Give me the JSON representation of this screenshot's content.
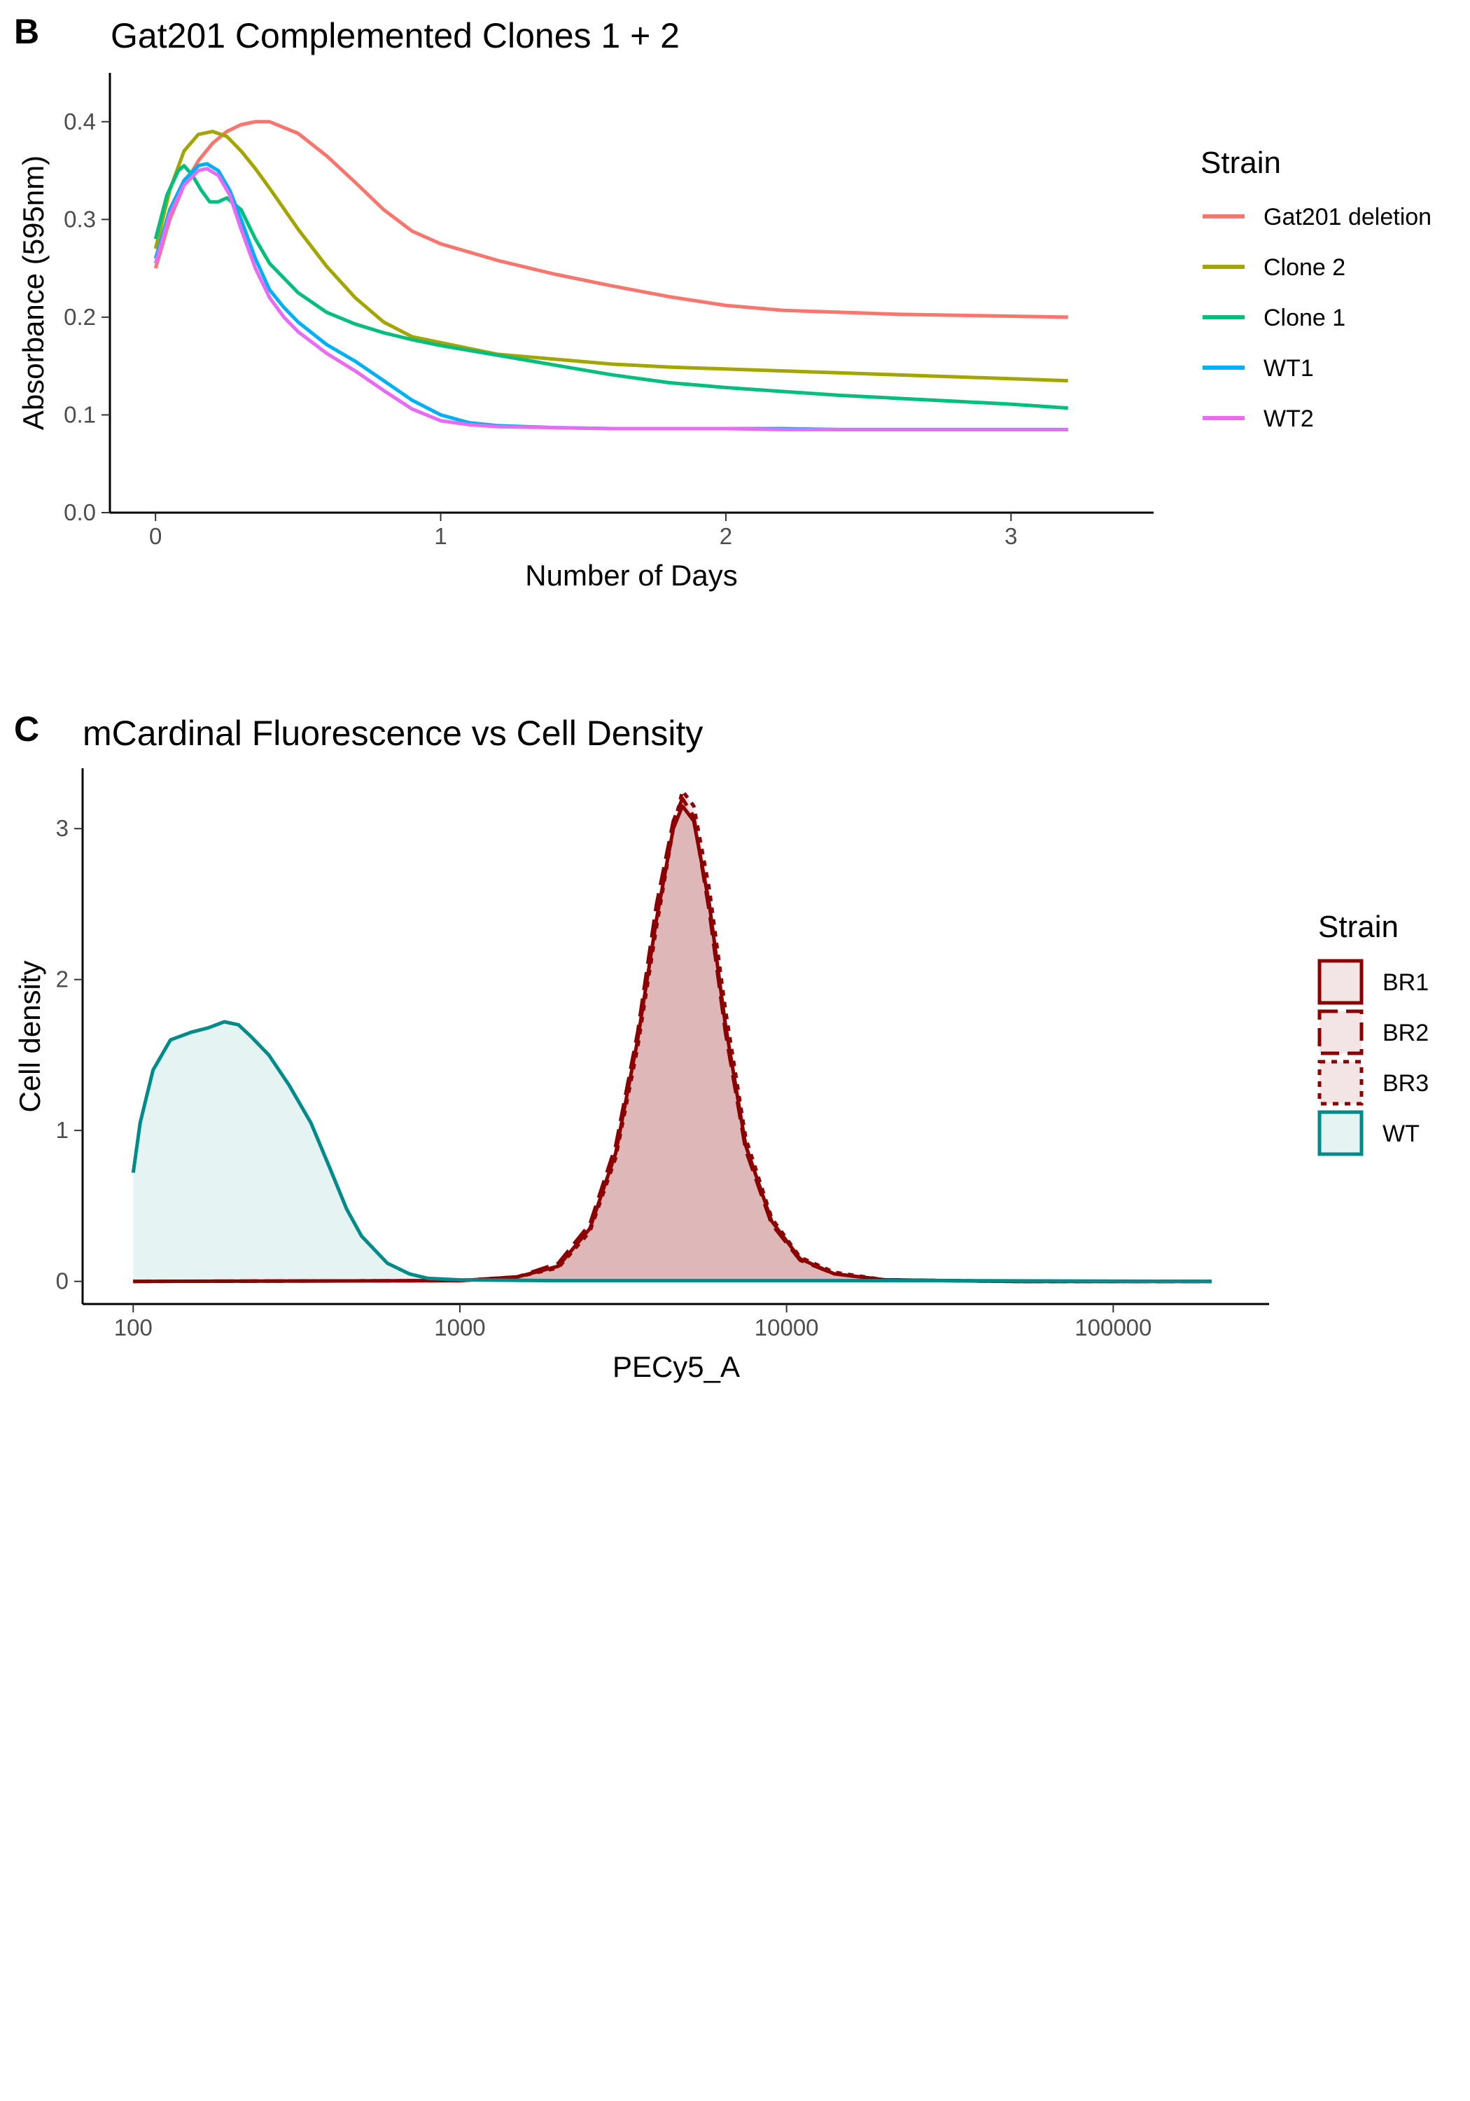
{
  "panels": {
    "b": {
      "letter": "B",
      "title": "Gat201 Complemented Clones 1 + 2"
    },
    "c": {
      "letter": "C",
      "title": "mCardinal Fluorescence vs Cell Density"
    }
  },
  "chart_data": [
    {
      "type": "line",
      "title": "Gat201 Complemented Clones 1 + 2",
      "xlabel": "Number of Days",
      "ylabel": "Absorbance (595nm)",
      "xlim": [
        -0.16,
        3.5
      ],
      "ylim": [
        0,
        0.45
      ],
      "x_ticks": [
        0,
        1,
        2,
        3
      ],
      "x_tick_labels": [
        "0",
        "1",
        "2",
        "3"
      ],
      "y_ticks": [
        0,
        0.1,
        0.2,
        0.3,
        0.4
      ],
      "y_tick_labels": [
        "0.0",
        "0.1",
        "0.2",
        "0.3",
        "0.4"
      ],
      "grid": false,
      "legend": {
        "title": "Strain",
        "position": "right"
      },
      "series": [
        {
          "name": "Gat201 deletion",
          "color": "#F8766D",
          "x": [
            0,
            0.05,
            0.1,
            0.15,
            0.2,
            0.25,
            0.3,
            0.35,
            0.4,
            0.5,
            0.6,
            0.7,
            0.8,
            0.9,
            1.0,
            1.2,
            1.4,
            1.6,
            1.8,
            2.0,
            2.2,
            2.4,
            2.6,
            2.8,
            3.0,
            3.2
          ],
          "y": [
            0.25,
            0.3,
            0.335,
            0.36,
            0.378,
            0.39,
            0.397,
            0.4,
            0.4,
            0.388,
            0.365,
            0.338,
            0.31,
            0.288,
            0.275,
            0.258,
            0.244,
            0.232,
            0.221,
            0.212,
            0.207,
            0.205,
            0.203,
            0.202,
            0.201,
            0.2
          ]
        },
        {
          "name": "Clone 2",
          "color": "#A3A500",
          "x": [
            0,
            0.05,
            0.1,
            0.15,
            0.2,
            0.25,
            0.3,
            0.35,
            0.4,
            0.5,
            0.6,
            0.7,
            0.8,
            0.9,
            1.0,
            1.2,
            1.4,
            1.6,
            1.8,
            2.0,
            2.2,
            2.4,
            2.6,
            2.8,
            3.0,
            3.2
          ],
          "y": [
            0.27,
            0.33,
            0.37,
            0.387,
            0.39,
            0.385,
            0.37,
            0.352,
            0.332,
            0.29,
            0.252,
            0.22,
            0.195,
            0.18,
            0.174,
            0.162,
            0.157,
            0.152,
            0.149,
            0.147,
            0.145,
            0.143,
            0.141,
            0.139,
            0.137,
            0.135
          ]
        },
        {
          "name": "Clone 1",
          "color": "#00BF7D",
          "x": [
            0,
            0.04,
            0.08,
            0.1,
            0.13,
            0.16,
            0.19,
            0.22,
            0.25,
            0.3,
            0.35,
            0.4,
            0.5,
            0.6,
            0.7,
            0.8,
            0.9,
            1.0,
            1.2,
            1.4,
            1.6,
            1.8,
            2.0,
            2.2,
            2.4,
            2.6,
            2.8,
            3.0,
            3.2
          ],
          "y": [
            0.28,
            0.325,
            0.35,
            0.355,
            0.345,
            0.33,
            0.318,
            0.318,
            0.322,
            0.31,
            0.28,
            0.255,
            0.225,
            0.205,
            0.193,
            0.184,
            0.177,
            0.171,
            0.161,
            0.151,
            0.141,
            0.133,
            0.128,
            0.124,
            0.12,
            0.117,
            0.114,
            0.111,
            0.107
          ]
        },
        {
          "name": "WT1",
          "color": "#00B0F6",
          "x": [
            0,
            0.05,
            0.1,
            0.15,
            0.18,
            0.22,
            0.26,
            0.3,
            0.35,
            0.4,
            0.45,
            0.5,
            0.6,
            0.7,
            0.8,
            0.9,
            1.0,
            1.1,
            1.2,
            1.4,
            1.6,
            1.8,
            2.0,
            2.2,
            2.4,
            2.6,
            2.8,
            3.0,
            3.2
          ],
          "y": [
            0.26,
            0.31,
            0.34,
            0.355,
            0.357,
            0.35,
            0.33,
            0.3,
            0.26,
            0.228,
            0.21,
            0.195,
            0.172,
            0.155,
            0.135,
            0.115,
            0.1,
            0.092,
            0.089,
            0.087,
            0.086,
            0.086,
            0.086,
            0.086,
            0.085,
            0.085,
            0.085,
            0.085,
            0.085
          ]
        },
        {
          "name": "WT2",
          "color": "#E76BF3",
          "x": [
            0,
            0.05,
            0.1,
            0.15,
            0.18,
            0.22,
            0.26,
            0.3,
            0.35,
            0.4,
            0.45,
            0.5,
            0.6,
            0.7,
            0.8,
            0.9,
            1.0,
            1.1,
            1.2,
            1.4,
            1.6,
            1.8,
            2.0,
            2.2,
            2.4,
            2.6,
            2.8,
            3.0,
            3.2
          ],
          "y": [
            0.255,
            0.305,
            0.335,
            0.35,
            0.352,
            0.345,
            0.325,
            0.29,
            0.25,
            0.22,
            0.2,
            0.185,
            0.163,
            0.145,
            0.125,
            0.106,
            0.094,
            0.09,
            0.088,
            0.087,
            0.086,
            0.086,
            0.086,
            0.085,
            0.085,
            0.085,
            0.085,
            0.085,
            0.085
          ]
        }
      ]
    },
    {
      "type": "area",
      "title": "mCardinal Fluorescence vs Cell Density",
      "xlabel": "PECy5_A",
      "ylabel": "Cell density",
      "x_scale": "log10",
      "xlim": [
        70,
        300000
      ],
      "ylim": [
        -0.15,
        3.4
      ],
      "x_ticks": [
        100,
        1000,
        10000,
        100000
      ],
      "x_tick_labels": [
        "100",
        "1000",
        "10000",
        "100000"
      ],
      "y_ticks": [
        0,
        1,
        2,
        3
      ],
      "y_tick_labels": [
        "0",
        "1",
        "2",
        "3"
      ],
      "grid": false,
      "legend": {
        "title": "Strain",
        "position": "right"
      },
      "series": [
        {
          "name": "BR1",
          "line_style": "solid",
          "color": "#8B0000",
          "fill": "#8B0000",
          "fill_opacity": 0.1,
          "x": [
            100,
            1000,
            1500,
            2000,
            2500,
            3000,
            3500,
            4000,
            4500,
            4800,
            5200,
            5800,
            6500,
            7500,
            9000,
            11000,
            14000,
            20000,
            50000,
            200000
          ],
          "y": [
            0,
            0.005,
            0.03,
            0.1,
            0.35,
            0.85,
            1.6,
            2.4,
            3.0,
            3.15,
            3.05,
            2.5,
            1.7,
            0.9,
            0.4,
            0.15,
            0.05,
            0.01,
            0,
            0
          ]
        },
        {
          "name": "BR2",
          "line_style": "dashed",
          "color": "#8B0000",
          "fill": "#8B0000",
          "fill_opacity": 0.1,
          "x": [
            100,
            1000,
            1500,
            2000,
            2500,
            3000,
            3500,
            4000,
            4500,
            4800,
            5200,
            5800,
            6500,
            7500,
            9000,
            11000,
            14000,
            20000,
            50000,
            200000
          ],
          "y": [
            0,
            0.005,
            0.03,
            0.12,
            0.38,
            0.9,
            1.65,
            2.5,
            3.05,
            3.2,
            3.08,
            2.45,
            1.65,
            0.87,
            0.38,
            0.14,
            0.05,
            0.01,
            0,
            0
          ]
        },
        {
          "name": "BR3",
          "line_style": "dotted",
          "color": "#8B0000",
          "fill": "#8B0000",
          "fill_opacity": 0.1,
          "x": [
            100,
            1000,
            1500,
            2000,
            2500,
            3000,
            3500,
            4000,
            4500,
            4800,
            5200,
            5800,
            6500,
            7500,
            9000,
            11000,
            14000,
            20000,
            50000,
            200000
          ],
          "y": [
            0,
            0.005,
            0.03,
            0.09,
            0.33,
            0.82,
            1.55,
            2.35,
            3.0,
            3.25,
            3.15,
            2.6,
            1.8,
            0.95,
            0.42,
            0.16,
            0.06,
            0.01,
            0,
            0
          ]
        },
        {
          "name": "WT",
          "line_style": "solid",
          "color": "#008B8B",
          "fill": "#008B8B",
          "fill_opacity": 0.1,
          "x": [
            100,
            105,
            115,
            130,
            150,
            170,
            190,
            210,
            230,
            260,
            300,
            350,
            400,
            450,
            500,
            600,
            700,
            800,
            1000,
            2000,
            30000,
            200000
          ],
          "y": [
            0.72,
            1.05,
            1.4,
            1.6,
            1.65,
            1.68,
            1.72,
            1.7,
            1.62,
            1.5,
            1.3,
            1.05,
            0.75,
            0.48,
            0.3,
            0.12,
            0.05,
            0.02,
            0.01,
            0.005,
            0.005,
            0
          ]
        }
      ]
    }
  ]
}
